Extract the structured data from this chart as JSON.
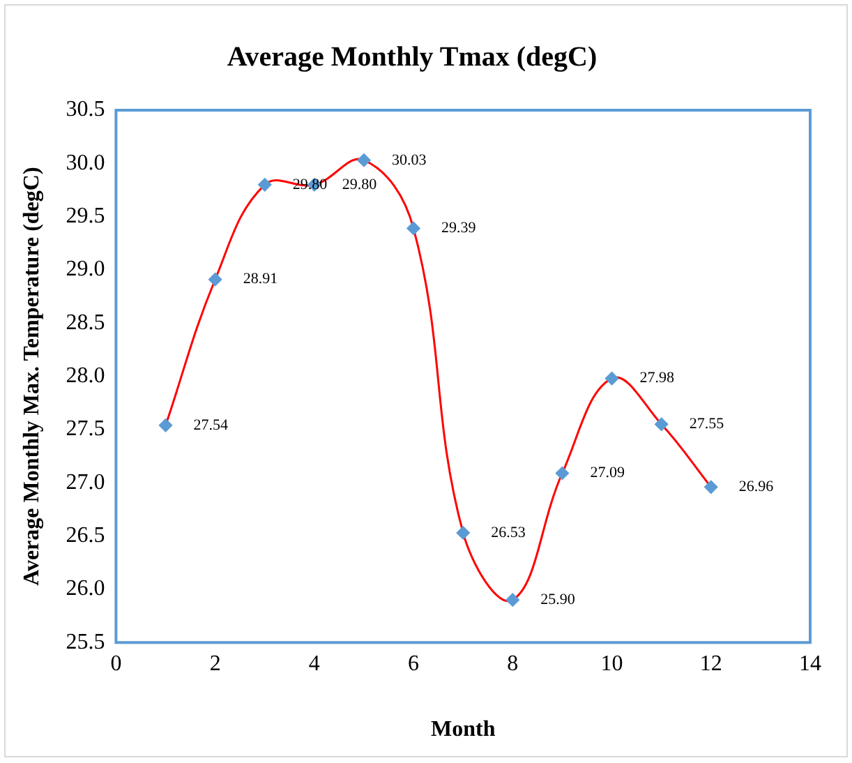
{
  "chart_data": {
    "type": "line",
    "title": "Average Monthly Tmax (degC)",
    "xlabel": "Month",
    "ylabel": "Average Monthly Max. Temperature (degC)",
    "x": [
      1,
      2,
      3,
      4,
      5,
      6,
      7,
      8,
      9,
      10,
      11,
      12
    ],
    "series": [
      {
        "color": "#ff0000",
        "colors": [
          "#5b9bd5",
          "#5b9bd5",
          "#5b9bd5",
          "#5b9bd5",
          "#5b9bd5",
          "#5b9bd5",
          "#5b9bd5",
          "#5b9bd5",
          "#5b9bd5",
          "#5b9bd5",
          "#5b9bd5",
          "#5b9bd5"
        ],
        "values": [
          27.54,
          28.91,
          29.8,
          29.8,
          30.03,
          29.39,
          26.53,
          25.9,
          27.09,
          27.98,
          27.55,
          26.96
        ],
        "value_labels": [
          "27.54",
          "28.91",
          "29.80",
          "29.80",
          "30.03",
          "29.39",
          "26.53",
          "25.90",
          "27.09",
          "27.98",
          "27.55",
          "26.96"
        ]
      }
    ],
    "xlim": [
      0,
      14
    ],
    "xticks": [
      0,
      2,
      4,
      6,
      8,
      10,
      12,
      14
    ],
    "ylim": [
      25.5,
      30.5
    ],
    "yticks": [
      25.5,
      {
        "value": 26,
        "label": "26.0"
      },
      26.5,
      {
        "value": 27,
        "label": "27.0"
      },
      27.5,
      {
        "value": 28,
        "label": "28.0"
      },
      28.5,
      {
        "value": 29,
        "label": "29.0"
      },
      29.5,
      {
        "value": 30,
        "label": "30.0"
      },
      30.5
    ],
    "grid": false,
    "legend": false,
    "marker": "diamond",
    "line_style": "solid",
    "data_labels": true
  }
}
